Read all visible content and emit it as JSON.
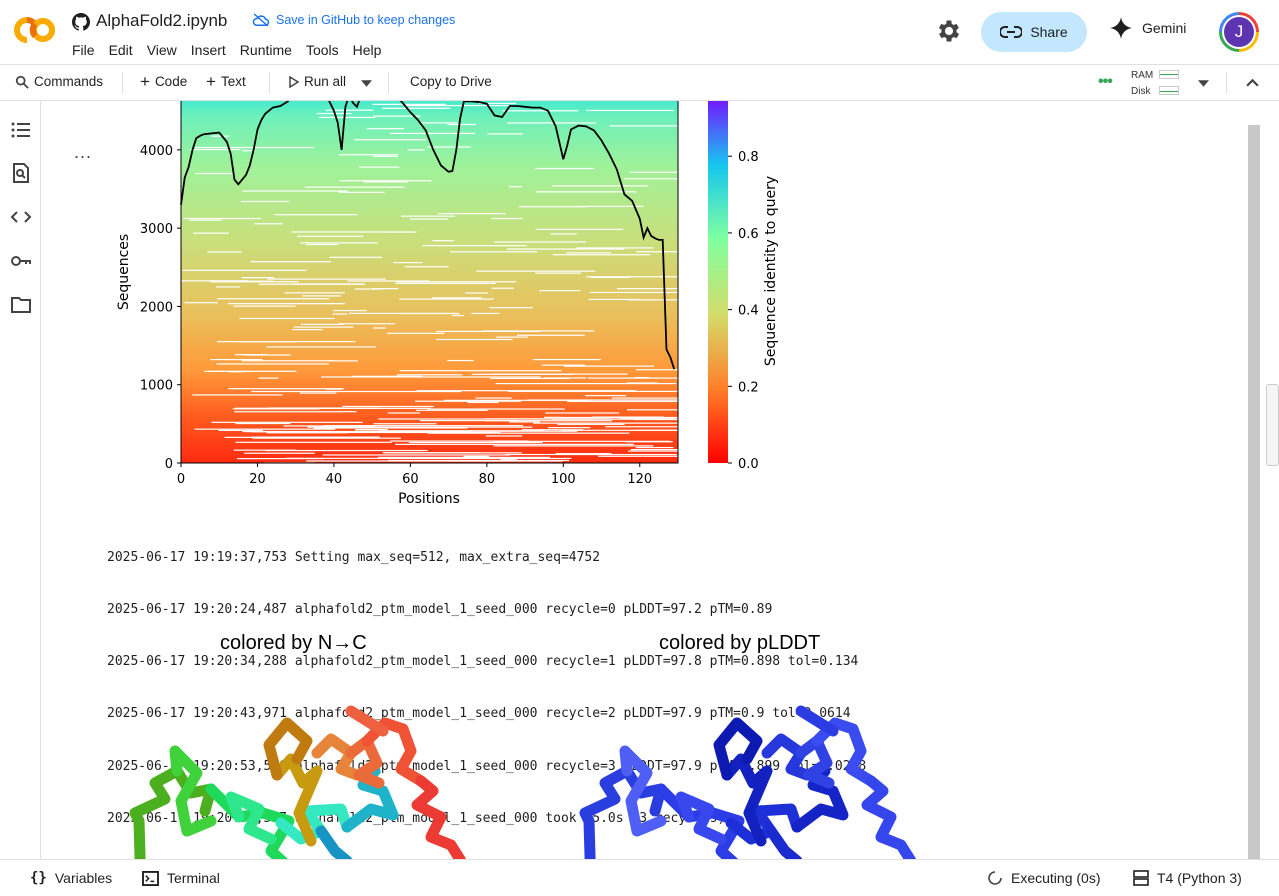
{
  "header": {
    "notebook_title": "AlphaFold2.ipynb",
    "save_notice": "Save in GitHub to keep changes",
    "menus": [
      "File",
      "Edit",
      "View",
      "Insert",
      "Runtime",
      "Tools",
      "Help"
    ],
    "share_label": "Share",
    "gemini_label": "Gemini",
    "avatar_initial": "J"
  },
  "toolbar": {
    "commands_label": "Commands",
    "code_label": "Code",
    "text_label": "Text",
    "run_all_label": "Run all",
    "copy_label": "Copy to Drive",
    "ram_label": "RAM",
    "disk_label": "Disk"
  },
  "cell": {
    "more_label": "..."
  },
  "chart_data": {
    "type": "heatmap",
    "xlabel": "Positions",
    "ylabel": "Sequences",
    "xlim": [
      0,
      130
    ],
    "ylim": [
      0,
      4752
    ],
    "x_ticks": [
      "0",
      "20",
      "40",
      "60",
      "80",
      "100",
      "120"
    ],
    "y_ticks": [
      "0",
      "1000",
      "2000",
      "3000",
      "4000"
    ],
    "colorbar": {
      "label": "Sequence identity to query",
      "ticks": [
        "0.0",
        "0.2",
        "0.4",
        "0.6",
        "0.8"
      ],
      "colormap": "rainbow_r"
    },
    "series": [
      {
        "type": "line",
        "x": [
          0,
          1,
          2,
          3,
          4,
          5,
          6,
          8,
          10,
          12,
          13,
          14,
          15,
          16,
          17,
          18,
          19,
          20,
          21,
          22,
          24,
          26,
          28,
          30,
          32,
          34,
          36,
          38,
          40,
          41,
          42,
          43,
          44,
          45,
          46,
          47,
          48,
          50,
          52,
          54,
          56,
          58,
          60,
          62,
          64,
          66,
          68,
          70,
          71,
          72,
          73,
          74,
          76,
          78,
          80,
          82,
          84,
          86,
          88,
          90,
          92,
          94,
          96,
          98,
          100,
          101,
          102,
          104,
          106,
          108,
          110,
          112,
          114,
          116,
          118,
          120,
          121,
          122,
          123,
          124,
          125,
          126,
          127,
          128,
          129
        ],
        "y": [
          3300,
          3650,
          3780,
          4000,
          4150,
          4180,
          4200,
          4210,
          4220,
          4100,
          3950,
          3620,
          3560,
          3620,
          3680,
          3800,
          4000,
          4260,
          4380,
          4460,
          4540,
          4560,
          4620,
          4760,
          4780,
          4780,
          4760,
          4700,
          4500,
          4350,
          4000,
          4550,
          4700,
          4600,
          4550,
          4680,
          4760,
          4760,
          4760,
          4750,
          4700,
          4600,
          4480,
          4380,
          4250,
          4000,
          3800,
          3720,
          3730,
          4000,
          4400,
          4620,
          4620,
          4610,
          4590,
          4440,
          4420,
          4560,
          4560,
          4550,
          4540,
          4540,
          4500,
          4300,
          3880,
          4050,
          4260,
          4310,
          4300,
          4250,
          4120,
          3950,
          3750,
          3430,
          3350,
          3120,
          2880,
          3000,
          2900,
          2870,
          2850,
          2850,
          1450,
          1350,
          1200
        ]
      }
    ]
  },
  "log_lines": [
    "2025-06-17 19:19:37,753 Setting max_seq=512, max_extra_seq=4752",
    "2025-06-17 19:20:24,487 alphafold2_ptm_model_1_seed_000 recycle=0 pLDDT=97.2 pTM=0.89",
    "2025-06-17 19:20:34,288 alphafold2_ptm_model_1_seed_000 recycle=1 pLDDT=97.8 pTM=0.898 tol=0.134",
    "2025-06-17 19:20:43,971 alphafold2_ptm_model_1_seed_000 recycle=2 pLDDT=97.9 pTM=0.9 tol=0.0614",
    "2025-06-17 19:20:53,556 alphafold2_ptm_model_1_seed_000 recycle=3 pLDDT=97.9 pTM=0.899 tol=0.0258",
    "2025-06-17 19:20:53,557 alphafold2_ptm_model_1_seed_000 took 65.0s (3 recycles)"
  ],
  "structures": {
    "left_title": "colored by N→C",
    "right_title": "colored by pLDDT"
  },
  "statusbar": {
    "variables_label": "Variables",
    "terminal_label": "Terminal",
    "executing_label": "Executing (0s)",
    "runtime_label": "T4 (Python 3)"
  },
  "colors": {
    "accent": "#1a73e8",
    "share_bg": "#c2e7ff",
    "avatar_bg": "#5e35b1"
  }
}
